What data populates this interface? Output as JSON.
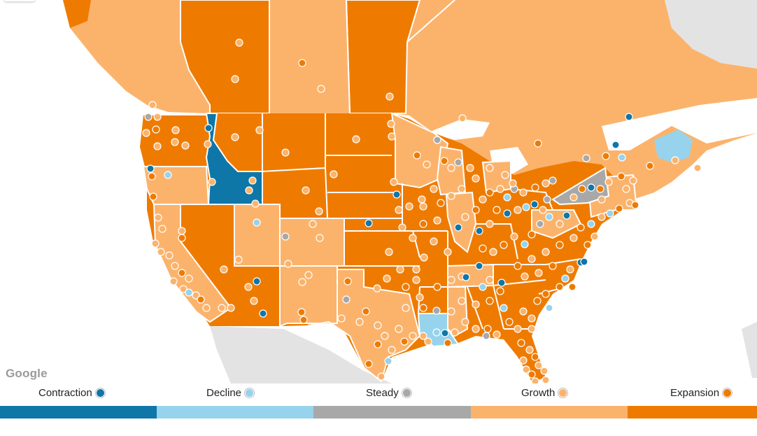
{
  "map": {
    "attribution": "Google",
    "colors": {
      "contraction": "#0f76a8",
      "decline": "#97d3ec",
      "steady": "#a8a8a8",
      "growth": "#fbb36c",
      "expansion": "#ee7b00",
      "water": "#ffffff",
      "land_other": "#e3e3e3"
    }
  },
  "legend": {
    "items": [
      {
        "label": "Contraction",
        "color": "#0f76a8"
      },
      {
        "label": "Decline",
        "color": "#97d3ec"
      },
      {
        "label": "Steady",
        "color": "#a8a8a8"
      },
      {
        "label": "Growth",
        "color": "#fbb36c"
      },
      {
        "label": "Expansion",
        "color": "#ee7b00"
      }
    ]
  }
}
